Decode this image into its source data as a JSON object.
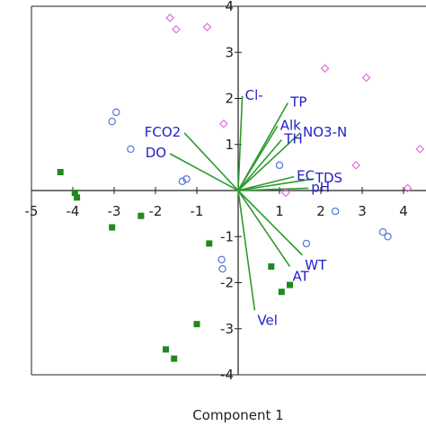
{
  "chart_data": {
    "type": "scatter",
    "xlabel": "Component 1",
    "xlim": [
      -5,
      4.6
    ],
    "ylim": [
      -4,
      4
    ],
    "x_ticks": [
      -5,
      -4,
      -3,
      -2,
      -1,
      1,
      2,
      3,
      4
    ],
    "y_ticks": [
      4,
      3,
      2,
      1,
      -1,
      -2,
      -3,
      -4
    ],
    "colors": {
      "vector": "#2e9a2e",
      "vector_label": "#1f1fc8",
      "squares": "#1f8a1f",
      "circles": "#5b7fd6",
      "diamonds": "#e070d8",
      "axis": "#222222"
    },
    "vectors": [
      {
        "name": "Cl-",
        "x": 0.1,
        "y": 2.05
      },
      {
        "name": "TP",
        "x": 1.2,
        "y": 1.9
      },
      {
        "name": "Alk",
        "x": 0.95,
        "y": 1.4
      },
      {
        "name": "TH",
        "x": 1.05,
        "y": 1.1
      },
      {
        "name": "NO3-N",
        "x": 1.5,
        "y": 1.25
      },
      {
        "name": "FCO2",
        "x": -1.3,
        "y": 1.25
      },
      {
        "name": "DO",
        "x": -1.65,
        "y": 0.8
      },
      {
        "name": "EC",
        "x": 1.35,
        "y": 0.3
      },
      {
        "name": "TDS",
        "x": 1.8,
        "y": 0.25
      },
      {
        "name": "pH",
        "x": 1.7,
        "y": 0.05
      },
      {
        "name": "WT",
        "x": 1.55,
        "y": -1.4
      },
      {
        "name": "AT",
        "x": 1.25,
        "y": -1.65
      },
      {
        "name": "Vel",
        "x": 0.4,
        "y": -2.6
      }
    ],
    "series": [
      {
        "marker": "square",
        "points": [
          [
            -4.3,
            0.4
          ],
          [
            -3.95,
            -0.05
          ],
          [
            -3.9,
            -0.15
          ],
          [
            -3.05,
            -0.8
          ],
          [
            -2.35,
            -0.55
          ],
          [
            -0.7,
            -1.15
          ],
          [
            0.8,
            -1.65
          ],
          [
            1.05,
            -2.2
          ],
          [
            1.25,
            -2.05
          ],
          [
            -1.0,
            -2.9
          ],
          [
            -1.75,
            -3.45
          ],
          [
            -1.55,
            -3.65
          ]
        ]
      },
      {
        "marker": "circle",
        "points": [
          [
            -2.95,
            1.7
          ],
          [
            -3.05,
            1.5
          ],
          [
            -2.6,
            0.9
          ],
          [
            -1.25,
            0.25
          ],
          [
            -1.35,
            0.2
          ],
          [
            1.0,
            0.55
          ],
          [
            2.35,
            -0.45
          ],
          [
            3.5,
            -0.9
          ],
          [
            3.62,
            -1.0
          ],
          [
            1.65,
            -1.15
          ],
          [
            -0.4,
            -1.5
          ],
          [
            -0.38,
            -1.7
          ]
        ]
      },
      {
        "marker": "diamond",
        "points": [
          [
            -1.65,
            3.75
          ],
          [
            -1.5,
            3.5
          ],
          [
            -0.75,
            3.55
          ],
          [
            2.1,
            2.65
          ],
          [
            3.1,
            2.45
          ],
          [
            -0.35,
            1.45
          ],
          [
            4.4,
            0.9
          ],
          [
            2.85,
            0.55
          ],
          [
            4.1,
            0.05
          ],
          [
            1.15,
            -0.05
          ]
        ]
      }
    ]
  }
}
